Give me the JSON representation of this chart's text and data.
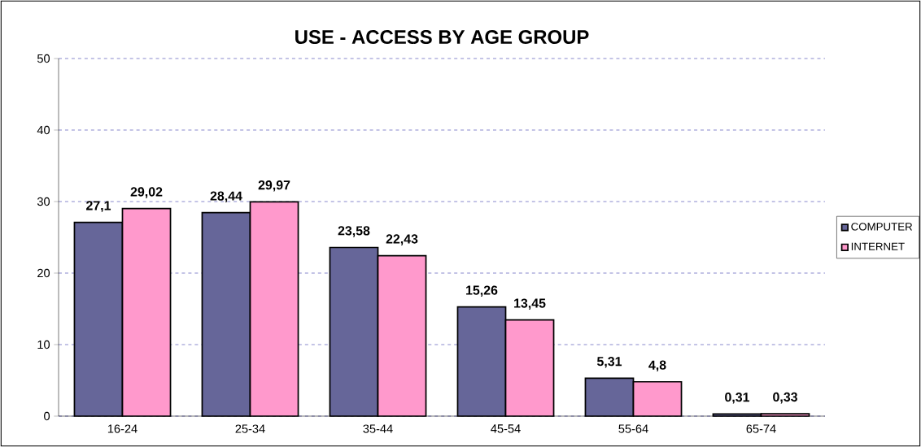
{
  "chart_data": {
    "type": "bar",
    "title": "USE - ACCESS BY AGE GROUP",
    "categories": [
      "16-24",
      "25-34",
      "35-44",
      "45-54",
      "55-64",
      "65-74"
    ],
    "series": [
      {
        "name": "COMPUTER",
        "color": "#666699",
        "values": [
          27.1,
          28.44,
          23.58,
          15.26,
          5.31,
          0.31
        ],
        "value_labels": [
          "27,1",
          "28,44",
          "23,58",
          "15,26",
          "5,31",
          "0,31"
        ]
      },
      {
        "name": "INTERNET",
        "color": "#ff99cc",
        "values": [
          29.02,
          29.97,
          22.43,
          13.45,
          4.8,
          0.33
        ],
        "value_labels": [
          "29,02",
          "29,97",
          "22,43",
          "13,45",
          "4,8",
          "0,33"
        ]
      }
    ],
    "ylim": [
      0,
      50
    ],
    "yticks": [
      0,
      10,
      20,
      30,
      40,
      50
    ],
    "grid": "y",
    "legend": "right"
  }
}
